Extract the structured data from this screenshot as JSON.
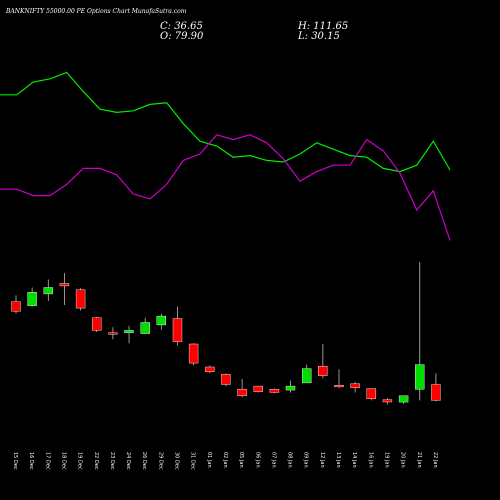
{
  "header": {
    "title": "BANKNIFTY 55000.00 PE Options Chart MunafaSutra.com",
    "close_label": "C: 36.65",
    "open_label": "O: 79.90",
    "high_label": "H: 111.65",
    "low_label": "L: 30.15"
  },
  "colors": {
    "background": "#000000",
    "up": "#00dd00",
    "down": "#ff0000",
    "line_green": "#00ee00",
    "line_magenta": "#cc00cc",
    "text": "#ffffff"
  },
  "chart_data": [
    {
      "type": "line",
      "series": [
        {
          "values": [
            0.72,
            0.72,
            0.8,
            0.82,
            0.86,
            0.74,
            0.63,
            0.61,
            0.62,
            0.66,
            0.67,
            0.54,
            0.43,
            0.4,
            0.33,
            0.34,
            0.31,
            0.3,
            0.35,
            0.42,
            0.38,
            0.34,
            0.33,
            0.26,
            0.24,
            0.28,
            0.43,
            0.25
          ],
          "color": "#00ee00"
        },
        {
          "values": [
            0.13,
            0.13,
            0.09,
            0.09,
            0.16,
            0.26,
            0.26,
            0.22,
            0.1,
            0.07,
            0.16,
            0.31,
            0.35,
            0.47,
            0.44,
            0.47,
            0.42,
            0.32,
            0.18,
            0.24,
            0.28,
            0.28,
            0.44,
            0.37,
            0.23,
            0.0,
            0.12,
            -0.19
          ],
          "color": "#cc00cc"
        }
      ]
    },
    {
      "type": "candlestick",
      "categories": [
        "15 Dec",
        "16 Dec",
        "17 Dec",
        "18 Dec",
        "19 Dec",
        "22 Dec",
        "23 Dec",
        "24 Dec",
        "26 Dec",
        "29 Dec",
        "30 Dec",
        "31 Dec",
        "01 Jan",
        "02 Jan",
        "05 Jan",
        "06 Jan",
        "07 Jan",
        "08 Jan",
        "09 Jan",
        "12 Jan",
        "13 Jan",
        "14 Jan",
        "16 Jan",
        "19 Jan",
        "20 Jan",
        "21 Jan",
        "22 Jan"
      ],
      "ylim": [
        30,
        260
      ],
      "candles": [
        {
          "open": 210,
          "high": 218,
          "low": 195,
          "close": 198
        },
        {
          "open": 205,
          "high": 228,
          "low": 204,
          "close": 222
        },
        {
          "open": 220,
          "high": 238,
          "low": 211,
          "close": 228
        },
        {
          "open": 233,
          "high": 246,
          "low": 206,
          "close": 230
        },
        {
          "open": 225,
          "high": 227,
          "low": 199,
          "close": 202
        },
        {
          "open": 190,
          "high": 191,
          "low": 172,
          "close": 174
        },
        {
          "open": 171,
          "high": 178,
          "low": 163,
          "close": 170
        },
        {
          "open": 171,
          "high": 180,
          "low": 158,
          "close": 174
        },
        {
          "open": 170,
          "high": 190,
          "low": 170,
          "close": 184
        },
        {
          "open": 181,
          "high": 195,
          "low": 175,
          "close": 192
        },
        {
          "open": 189,
          "high": 204,
          "low": 155,
          "close": 160
        },
        {
          "open": 157,
          "high": 158,
          "low": 130,
          "close": 133
        },
        {
          "open": 128,
          "high": 130,
          "low": 120,
          "close": 122
        },
        {
          "open": 119,
          "high": 120,
          "low": 104,
          "close": 106
        },
        {
          "open": 100,
          "high": 113,
          "low": 90,
          "close": 92
        },
        {
          "open": 104,
          "high": 104,
          "low": 96,
          "close": 97
        },
        {
          "open": 100,
          "high": 101,
          "low": 95,
          "close": 96
        },
        {
          "open": 99,
          "high": 111,
          "low": 96,
          "close": 104
        },
        {
          "open": 108,
          "high": 131,
          "low": 108,
          "close": 126
        },
        {
          "open": 129,
          "high": 157,
          "low": 114,
          "close": 117
        },
        {
          "open": 105,
          "high": 125,
          "low": 102,
          "close": 103
        },
        {
          "open": 107,
          "high": 109,
          "low": 96,
          "close": 102
        },
        {
          "open": 101,
          "high": 101,
          "low": 86,
          "close": 88
        },
        {
          "open": 87,
          "high": 89,
          "low": 81,
          "close": 84
        },
        {
          "open": 84,
          "high": 92,
          "low": 82,
          "close": 92
        },
        {
          "open": 100,
          "high": 260,
          "low": 86,
          "close": 131
        },
        {
          "open": 106,
          "high": 120,
          "low": 85,
          "close": 86
        }
      ]
    }
  ]
}
